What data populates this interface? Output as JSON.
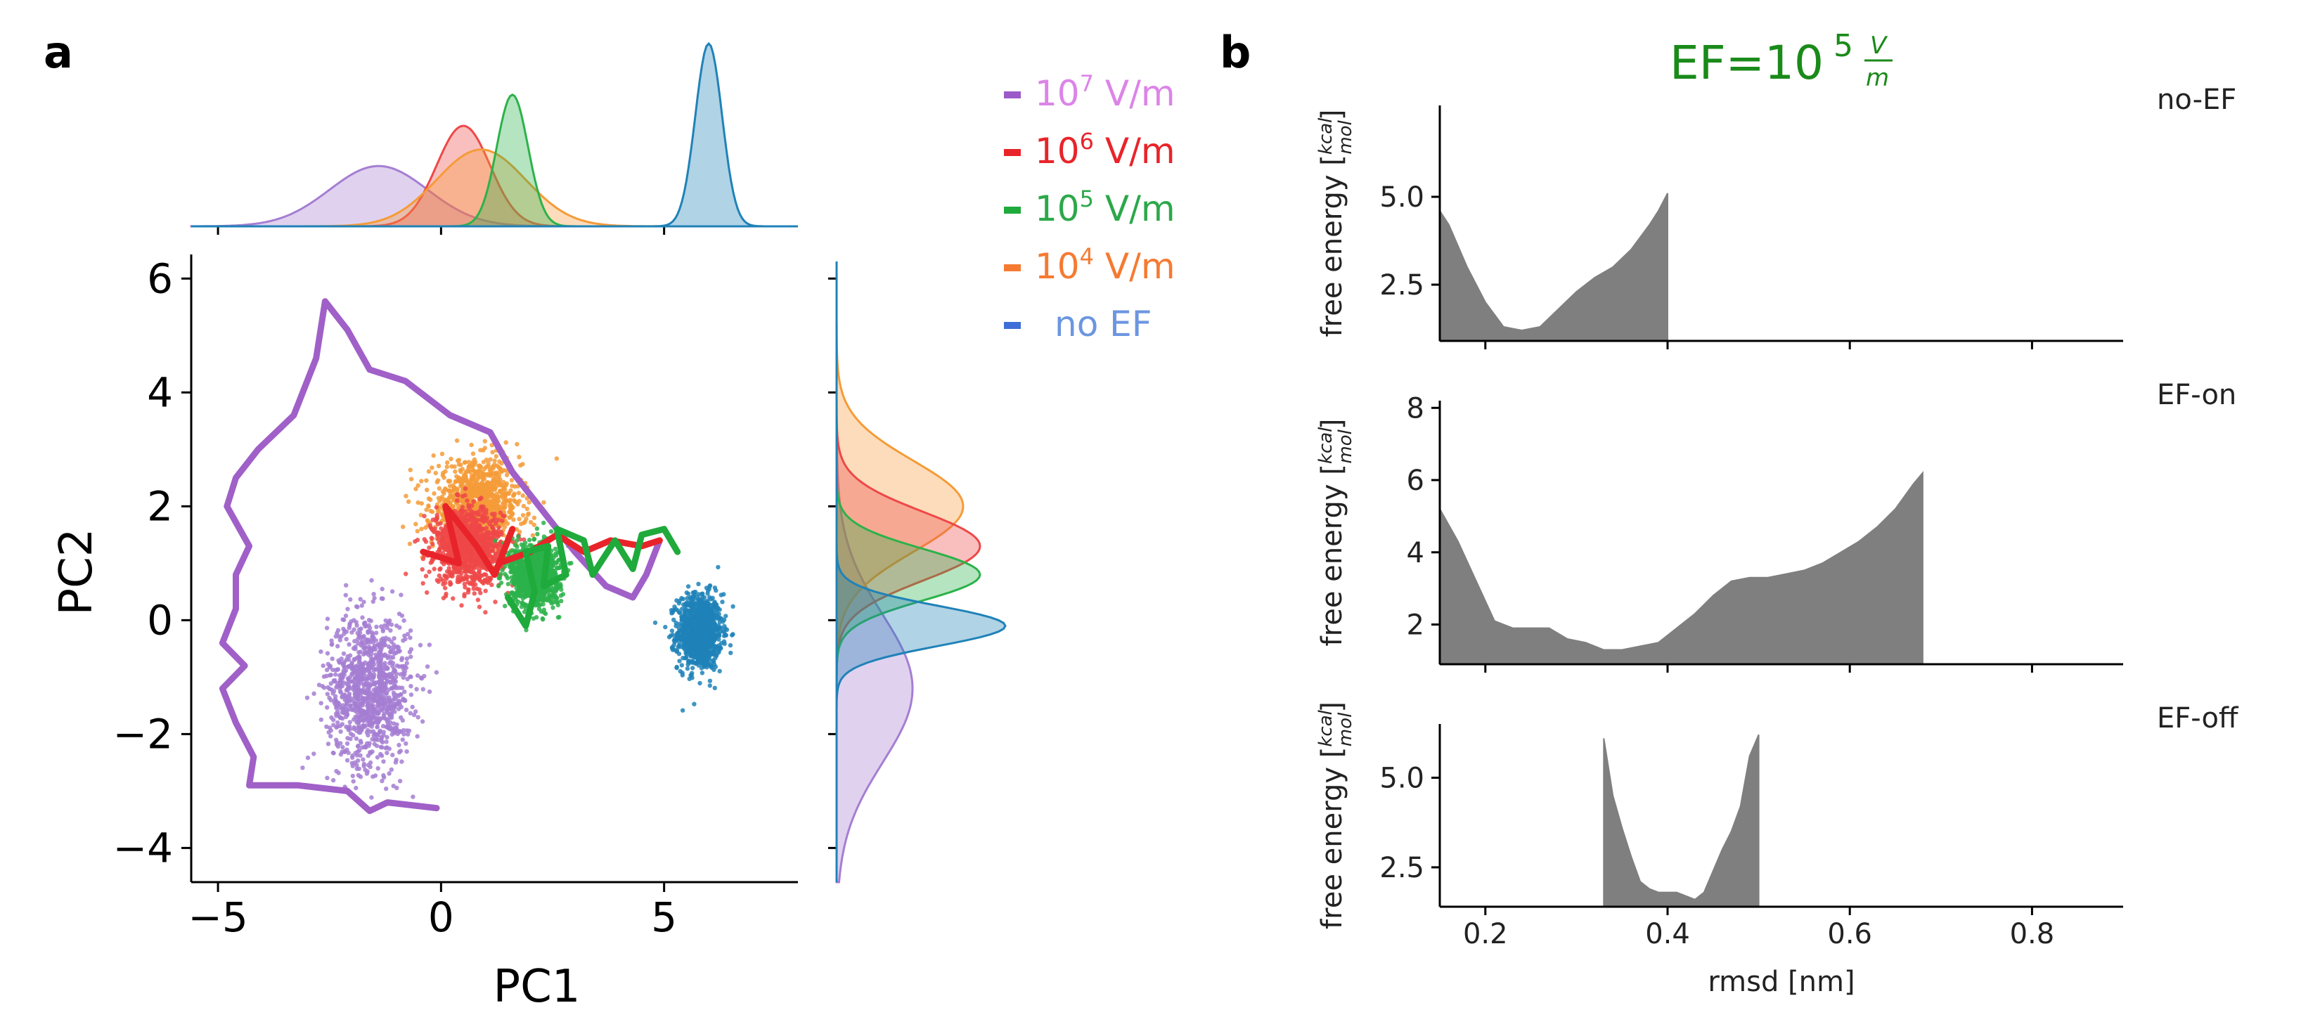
{
  "panels": {
    "a": {
      "label": "a"
    },
    "b": {
      "label": "b",
      "title_prefix": "EF=10",
      "title_exp": "5",
      "title_num": "V",
      "title_den": "m"
    }
  },
  "chart_data": [
    {
      "type": "scatter",
      "panel": "a",
      "xlabel": "PC1",
      "ylabel": "PC2",
      "xlim": [
        -5.6,
        8
      ],
      "ylim": [
        -4.6,
        6.3
      ],
      "xticks": [
        -5,
        0,
        5
      ],
      "xtick_labels": [
        "−5",
        "0",
        "5"
      ],
      "yticks": [
        -4,
        -2,
        0,
        2,
        4,
        6
      ],
      "ytick_labels": [
        "−4",
        "−2",
        "0",
        "2",
        "4",
        "6"
      ],
      "legend_position": "top-right",
      "legend": [
        {
          "prefix": "10",
          "exp": "7",
          "suffix": " V/m",
          "color": "#9c5ac9",
          "text_color": "#dc84e8"
        },
        {
          "prefix": "10",
          "exp": "6",
          "suffix": " V/m",
          "color": "#e8242a",
          "text_color": "#e8242a"
        },
        {
          "prefix": "10",
          "exp": "5",
          "suffix": " V/m",
          "color": "#1faa3c",
          "text_color": "#2ca84a"
        },
        {
          "prefix": "10",
          "exp": "4",
          "suffix": " V/m",
          "color": "#f57a32",
          "text_color": "#f57a32"
        },
        {
          "prefix": "",
          "exp": "",
          "suffix": "no EF",
          "color": "#3e6fd8",
          "text_color": "#6b96e0"
        }
      ],
      "clusters": [
        {
          "series": "no EF",
          "color": "#1f82b8",
          "center": [
            5.8,
            -0.2
          ],
          "spread": [
            0.45,
            0.6
          ]
        },
        {
          "series": "10^7 V/m",
          "color": "#a57ed2",
          "center": [
            -1.6,
            -1.2
          ],
          "spread": [
            0.85,
            1.2
          ]
        },
        {
          "series": "10^4 V/m",
          "color": "#f59b38",
          "center": [
            0.8,
            2.0
          ],
          "spread": [
            0.9,
            0.7
          ]
        },
        {
          "series": "10^6 V/m",
          "color": "#ee4848",
          "center": [
            0.6,
            1.3
          ],
          "spread": [
            0.7,
            0.6
          ]
        },
        {
          "series": "10^5 V/m",
          "color": "#2cb24a",
          "center": [
            2.1,
            0.8
          ],
          "spread": [
            0.5,
            0.5
          ]
        }
      ],
      "paths": [
        {
          "series": "10^7 V/m",
          "color": "#a060c8",
          "points": [
            [
              -0.1,
              -3.3
            ],
            [
              -1.2,
              -3.2
            ],
            [
              -1.6,
              -3.35
            ],
            [
              -2.1,
              -3.0
            ],
            [
              -3.2,
              -2.9
            ],
            [
              -4.3,
              -2.9
            ],
            [
              -4.2,
              -2.4
            ],
            [
              -4.6,
              -1.8
            ],
            [
              -4.9,
              -1.2
            ],
            [
              -4.4,
              -0.8
            ],
            [
              -4.9,
              -0.4
            ],
            [
              -4.6,
              0.2
            ],
            [
              -4.6,
              0.8
            ],
            [
              -4.3,
              1.3
            ],
            [
              -4.8,
              2.0
            ],
            [
              -4.6,
              2.5
            ],
            [
              -4.1,
              3.0
            ],
            [
              -3.3,
              3.6
            ],
            [
              -2.8,
              4.6
            ],
            [
              -2.6,
              5.6
            ],
            [
              -2.1,
              5.1
            ],
            [
              -1.6,
              4.4
            ],
            [
              -0.8,
              4.2
            ],
            [
              0.2,
              3.6
            ],
            [
              1.1,
              3.3
            ],
            [
              1.6,
              2.6
            ],
            [
              2.3,
              1.9
            ],
            [
              3.0,
              1.2
            ],
            [
              3.7,
              0.6
            ],
            [
              4.3,
              0.4
            ],
            [
              4.6,
              0.8
            ],
            [
              4.9,
              1.4
            ]
          ]
        },
        {
          "series": "10^6 V/m",
          "color": "#e8242a",
          "points": [
            [
              -0.4,
              1.2
            ],
            [
              0.4,
              1.0
            ],
            [
              0.1,
              2.0
            ],
            [
              0.8,
              1.3
            ],
            [
              1.2,
              0.8
            ],
            [
              1.6,
              1.6
            ],
            [
              1.3,
              1.0
            ],
            [
              2.0,
              1.2
            ],
            [
              2.6,
              1.5
            ],
            [
              3.2,
              1.2
            ],
            [
              3.8,
              1.4
            ],
            [
              4.5,
              1.3
            ],
            [
              4.9,
              1.4
            ]
          ]
        },
        {
          "series": "10^5 V/m",
          "color": "#1faa3c",
          "points": [
            [
              1.5,
              0.4
            ],
            [
              1.9,
              -0.1
            ],
            [
              2.1,
              0.5
            ],
            [
              1.9,
              1.2
            ],
            [
              2.4,
              1.3
            ],
            [
              2.3,
              0.6
            ],
            [
              2.8,
              0.8
            ],
            [
              2.6,
              1.6
            ],
            [
              3.2,
              1.4
            ],
            [
              3.4,
              0.8
            ],
            [
              3.9,
              1.4
            ],
            [
              4.3,
              0.9
            ],
            [
              4.5,
              1.5
            ],
            [
              5.0,
              1.6
            ],
            [
              5.3,
              1.2
            ]
          ]
        }
      ],
      "marginal_x": [
        {
          "series": "10^7 V/m",
          "color": "#a57ed2",
          "mean": -1.4,
          "sd": 1.1,
          "height": 0.33
        },
        {
          "series": "10^6 V/m",
          "color": "#ee4848",
          "mean": 0.5,
          "sd": 0.6,
          "height": 0.55
        },
        {
          "series": "10^4 V/m",
          "color": "#f59b38",
          "mean": 0.9,
          "sd": 1.0,
          "height": 0.42
        },
        {
          "series": "10^5 V/m",
          "color": "#2cb24a",
          "mean": 1.6,
          "sd": 0.35,
          "height": 0.72
        },
        {
          "series": "no EF",
          "color": "#1f82b8",
          "mean": 6.0,
          "sd": 0.3,
          "height": 1.0
        }
      ],
      "marginal_y": [
        {
          "series": "10^7 V/m",
          "color": "#a57ed2",
          "mean": -1.2,
          "sd": 1.3,
          "height": 0.45
        },
        {
          "series": "10^4 V/m",
          "color": "#f59b38",
          "mean": 2.0,
          "sd": 0.8,
          "height": 0.75
        },
        {
          "series": "10^6 V/m",
          "color": "#ee4848",
          "mean": 1.3,
          "sd": 0.6,
          "height": 0.85
        },
        {
          "series": "10^5 V/m",
          "color": "#2cb24a",
          "mean": 0.8,
          "sd": 0.45,
          "height": 0.85
        },
        {
          "series": "no EF",
          "color": "#1f82b8",
          "mean": -0.1,
          "sd": 0.35,
          "height": 1.0
        }
      ]
    },
    {
      "type": "area",
      "panel": "b",
      "xlabel": "rmsd [nm]",
      "ylabel": "free energy",
      "ylabel_unit_num": "kcal",
      "ylabel_unit_den": "mol",
      "xlim": [
        0.15,
        0.9
      ],
      "xticks": [
        0.2,
        0.4,
        0.6,
        0.8
      ],
      "color": "#7f7f7f",
      "subplots": [
        {
          "name": "no-EF",
          "ylim": [
            0.9,
            7.6
          ],
          "yticks": [
            2.5,
            5.0
          ],
          "ytick_labels": [
            "2.5",
            "5.0"
          ],
          "x": [
            0.15,
            0.16,
            0.18,
            0.2,
            0.22,
            0.24,
            0.26,
            0.28,
            0.3,
            0.32,
            0.34,
            0.36,
            0.38,
            0.39,
            0.4
          ],
          "y": [
            4.6,
            4.2,
            3.0,
            2.0,
            1.3,
            1.2,
            1.3,
            1.8,
            2.3,
            2.7,
            3.0,
            3.5,
            4.2,
            4.6,
            5.1
          ]
        },
        {
          "name": "EF-on",
          "ylim": [
            0.9,
            8.2
          ],
          "yticks": [
            2,
            4,
            6,
            8
          ],
          "ytick_labels": [
            "2",
            "4",
            "6",
            "8"
          ],
          "x": [
            0.15,
            0.17,
            0.19,
            0.21,
            0.23,
            0.25,
            0.27,
            0.29,
            0.31,
            0.33,
            0.35,
            0.37,
            0.39,
            0.41,
            0.43,
            0.45,
            0.47,
            0.49,
            0.51,
            0.53,
            0.55,
            0.57,
            0.59,
            0.61,
            0.63,
            0.65,
            0.67,
            0.68
          ],
          "y": [
            5.2,
            4.3,
            3.2,
            2.1,
            1.9,
            1.9,
            1.9,
            1.6,
            1.5,
            1.3,
            1.3,
            1.4,
            1.5,
            1.9,
            2.3,
            2.8,
            3.2,
            3.3,
            3.3,
            3.4,
            3.5,
            3.7,
            4.0,
            4.3,
            4.7,
            5.2,
            5.9,
            6.2
          ]
        },
        {
          "name": "EF-off",
          "ylim": [
            1.4,
            6.5
          ],
          "yticks": [
            2.5,
            5.0
          ],
          "ytick_labels": [
            "2.5",
            "5.0"
          ],
          "x": [
            0.33,
            0.34,
            0.35,
            0.36,
            0.37,
            0.38,
            0.39,
            0.4,
            0.41,
            0.42,
            0.43,
            0.44,
            0.45,
            0.46,
            0.47,
            0.48,
            0.49,
            0.5
          ],
          "y": [
            6.1,
            4.5,
            3.6,
            2.8,
            2.1,
            1.9,
            1.8,
            1.8,
            1.8,
            1.7,
            1.6,
            1.8,
            2.4,
            3.0,
            3.5,
            4.2,
            5.6,
            6.2
          ]
        }
      ]
    }
  ]
}
